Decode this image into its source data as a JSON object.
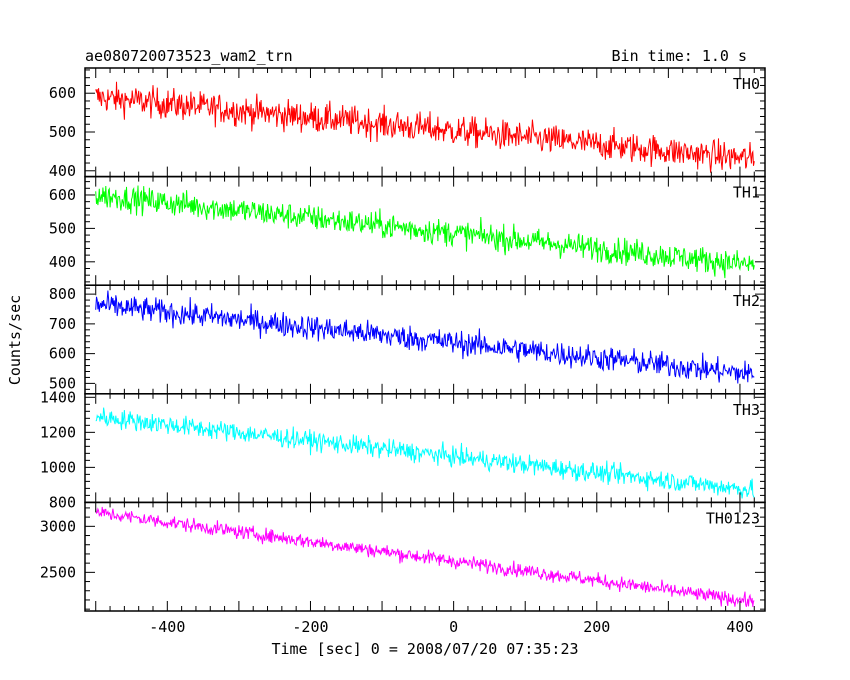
{
  "chart_data": {
    "type": "line",
    "title_left": "ae080720073523_wam2_trn",
    "title_right": "Bin time: 1.0 s",
    "xlabel": "Time [sec] 0 = 2008/07/20 07:35:23",
    "ylabel": "Counts/sec",
    "xlim": [
      -515,
      435
    ],
    "x_ticks": [
      -400,
      -200,
      0,
      200,
      400
    ],
    "x_range": [
      -500,
      420
    ],
    "bin_time": 1.0,
    "panels": [
      {
        "name": "TH0",
        "color": "#ff0000",
        "ylim": [
          385,
          665
        ],
        "y_ticks": [
          400,
          500,
          600
        ],
        "trend_start": 590,
        "trend_end": 430,
        "noise": 28
      },
      {
        "name": "TH1",
        "color": "#00ff00",
        "ylim": [
          330,
          655
        ],
        "y_ticks": [
          400,
          500,
          600
        ],
        "trend_start": 600,
        "trend_end": 390,
        "noise": 28
      },
      {
        "name": "TH2",
        "color": "#0000ff",
        "ylim": [
          465,
          830
        ],
        "y_ticks": [
          500,
          600,
          700,
          800
        ],
        "trend_start": 765,
        "trend_end": 530,
        "noise": 30
      },
      {
        "name": "TH3",
        "color": "#00ffff",
        "ylim": [
          800,
          1420
        ],
        "y_ticks": [
          800,
          1000,
          1200,
          1400
        ],
        "trend_start": 1290,
        "trend_end": 870,
        "noise": 40
      },
      {
        "name": "TH0123",
        "color": "#ff00ff",
        "ylim": [
          2080,
          3260
        ],
        "y_ticks": [
          2500,
          3000
        ],
        "trend_start": 3150,
        "trend_end": 2180,
        "noise": 55
      }
    ]
  }
}
